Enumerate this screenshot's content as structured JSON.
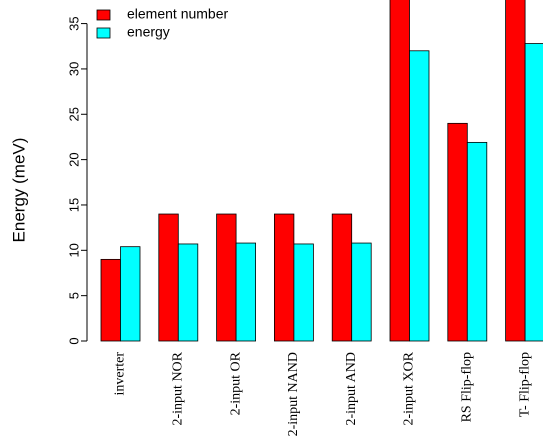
{
  "chart_data": {
    "type": "bar",
    "ylabel": "Energy (meV)",
    "categories": [
      "inverter",
      "2-input NOR",
      "2-input OR",
      "2-input NAND",
      "2-input AND",
      "2-input XOR",
      "RS Flip-flop",
      "T- Flip-flop"
    ],
    "series": [
      {
        "name": "element number",
        "color": "#ff0000",
        "values": [
          9,
          14,
          14,
          14,
          14,
          40,
          24,
          40
        ]
      },
      {
        "name": "energy",
        "color": "#00ffff",
        "values": [
          10.4,
          10.7,
          10.8,
          10.7,
          10.8,
          32,
          21.9,
          32.8
        ]
      }
    ],
    "ylim": [
      0,
      37.6
    ],
    "yticks": [
      0,
      5,
      10,
      15,
      20,
      25,
      30,
      35
    ],
    "grid": false
  }
}
